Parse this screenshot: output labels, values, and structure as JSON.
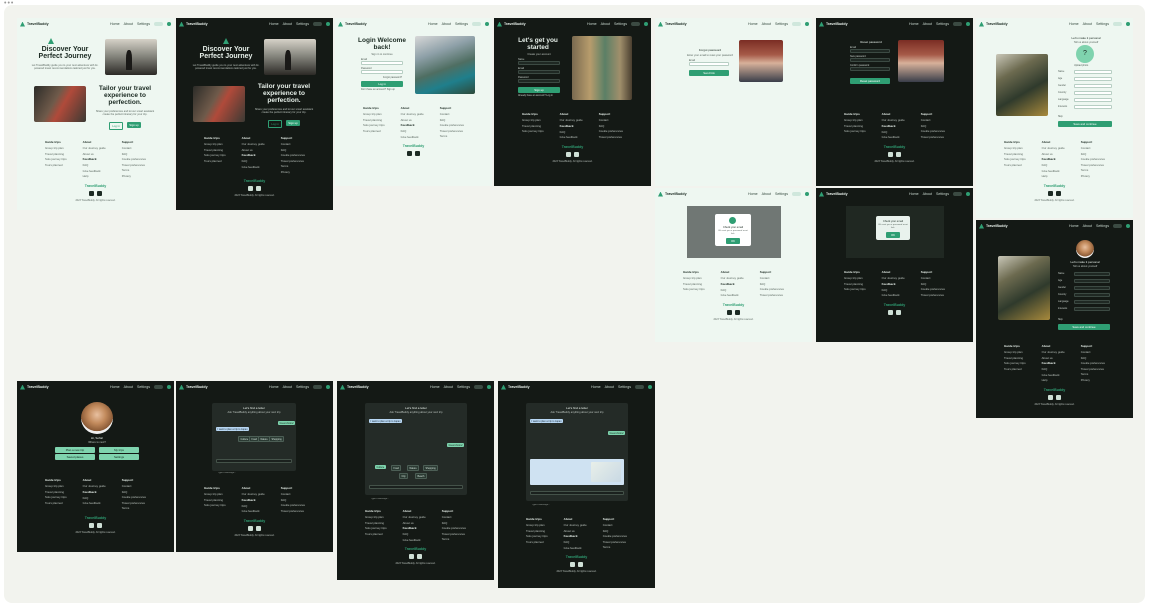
{
  "colors": {
    "accent": "#2f9e73",
    "light_bg": "#eef7f1",
    "dark_bg": "#141915",
    "canvas": "#f2f3ee"
  },
  "menu": "•••",
  "brand": "TravelBuddy",
  "nav": {
    "home": "Home",
    "about": "About",
    "settings": "Settings"
  },
  "footer": {
    "col1": {
      "title": "Guide trips",
      "items": [
        "Group trip plan",
        "Travel planning",
        "Solo journey trips",
        "Tours planned"
      ]
    },
    "col2": {
      "title": "About",
      "items": [
        "Our Journey guide",
        "About us"
      ]
    },
    "col2b": {
      "title": "Feedback",
      "items": [
        "FAQ",
        "Give feedback",
        "Help"
      ]
    },
    "col3": {
      "title": "Support",
      "items": [
        "Contact",
        "FAQ",
        "Cookie preferences",
        "Travel preferences",
        "Terms",
        "Privacy",
        "Cookies"
      ]
    },
    "copyright": "2023 TravelBuddy. All rights reserved."
  },
  "landing": {
    "heading": "Discover Your Perfect Journey",
    "sub": "Let TravelBuddy guide you to your next adventure with AI-powered travel recommendations tailored just for you.",
    "heading2": "Tailor your travel experience to perfection.",
    "sub2": "Share your preferences and let our smart assistant create the perfect itinerary for your trip.",
    "btn_login": "Log in",
    "btn_signup": "Sign up"
  },
  "login": {
    "title": "Login Welcome back!",
    "sub": "Sign in to continue",
    "email": "Email",
    "password": "Password",
    "forgot": "Forgot password?",
    "btn": "Log in",
    "alt": "Don't have an account? Sign up"
  },
  "signup": {
    "title": "Let's get you started",
    "sub": "Create your account",
    "name": "Name",
    "email": "Email",
    "password": "Password",
    "btn": "Sign up",
    "alt": "Already have an account? Log in"
  },
  "forgot": {
    "title": "Forgot password",
    "sub": "Enter your email to reset your password",
    "email": "Email",
    "btn": "Send link"
  },
  "reset": {
    "title": "Reset password",
    "email": "Email",
    "password": "New password",
    "confirm": "Confirm password",
    "btn": "Reset password"
  },
  "modal": {
    "title": "Check your email",
    "text": "We sent you a password reset link.",
    "btn": "OK"
  },
  "profile_setup": {
    "title": "Let's make it personal",
    "sub": "Tell us about yourself",
    "avatar_label": "Upload photo",
    "fields": [
      "Name",
      "Age",
      "Gender",
      "Country",
      "Language",
      "Interests"
    ],
    "btn": "Save and continue",
    "skip": "Skip"
  },
  "profile": {
    "greeting": "Hi, Sofia!",
    "sub": "Where to next?",
    "buttons": [
      "Plan a new trip",
      "My trips",
      "Saved places",
      "Settings"
    ]
  },
  "chat": {
    "title": "Let's find a letter",
    "sub": "Ask TravelBuddy anything about your next trip",
    "user_msg": "I want to plan a trip to Japan",
    "bot_msg": "Great choice!",
    "options": [
      "Culture",
      "Food",
      "Nature",
      "Shopping",
      "City",
      "Beach"
    ],
    "input": "Type a message..."
  }
}
